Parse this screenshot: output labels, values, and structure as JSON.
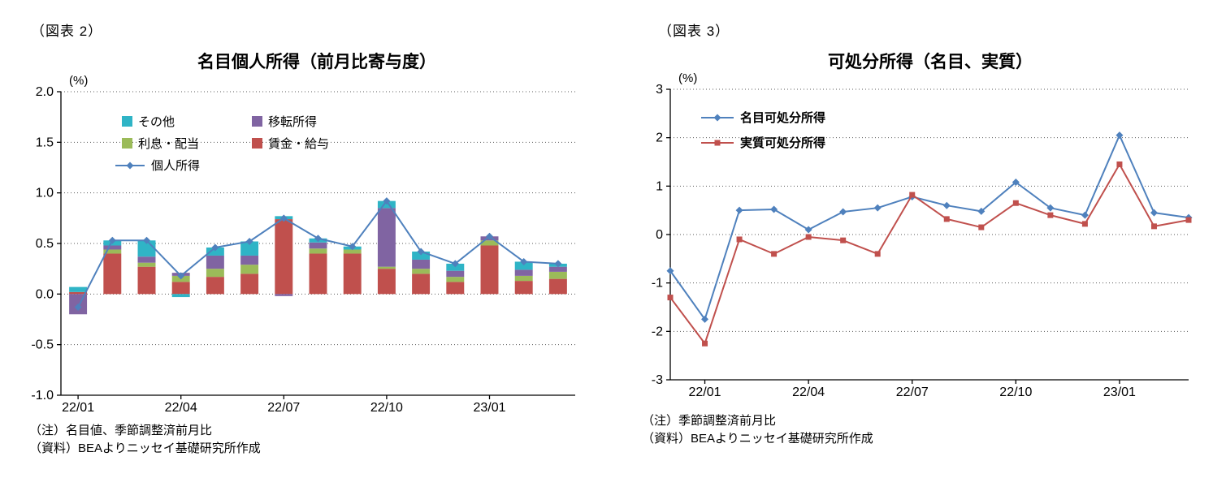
{
  "figure2": {
    "tag": "（図表 2）",
    "title": "名目個人所得（前月比寄与度）",
    "notes": [
      "（注）名目値、季節調整済前月比",
      "（資料）BEAよりニッセイ基礎研究所作成"
    ]
  },
  "figure3": {
    "tag": "（図表 3）",
    "title": "可処分所得（名目、実質）",
    "notes": [
      "（注）季節調整済前月比",
      "（資料）BEAよりニッセイ基礎研究所作成"
    ]
  },
  "colors": {
    "line_blue": "#4f81bd",
    "bar_red": "#c0504d",
    "bar_green": "#9bbb59",
    "bar_purple": "#8064a2",
    "bar_teal": "#2fb4c6",
    "grid": "#595959",
    "axis": "#000000"
  },
  "chart_data": [
    {
      "type": "bar",
      "subtype": "stacked-bar-with-line",
      "title": "名目個人所得（前月比寄与度）",
      "y_unit": "(%)",
      "ylabel": "",
      "xlabel": "",
      "ylim": [
        -1.0,
        2.0
      ],
      "yticks": [
        "2.0",
        "1.5",
        "1.0",
        "0.5",
        "0.0",
        "-0.5",
        "-1.0"
      ],
      "grid": "dotted-horizontal",
      "legend_position": "inside-top-left",
      "x": [
        "22/01",
        "22/02",
        "22/03",
        "22/04",
        "22/05",
        "22/06",
        "22/07",
        "22/08",
        "22/09",
        "22/10",
        "22/11",
        "22/12",
        "23/01",
        "23/02",
        "23/03"
      ],
      "xtick_labels": [
        "22/01",
        "22/04",
        "22/07",
        "22/10",
        "23/01"
      ],
      "bar_series": [
        {
          "name": "賃金・給与",
          "color": "#c0504d",
          "values": [
            0.02,
            0.4,
            0.27,
            0.12,
            0.17,
            0.2,
            0.74,
            0.4,
            0.4,
            0.25,
            0.2,
            0.12,
            0.48,
            0.13,
            0.15
          ]
        },
        {
          "name": "利息・配当",
          "color": "#9bbb59",
          "values": [
            0.0,
            0.04,
            0.04,
            0.06,
            0.08,
            0.09,
            0.0,
            0.05,
            0.04,
            0.02,
            0.05,
            0.05,
            0.05,
            0.05,
            0.07
          ]
        },
        {
          "name": "移転所得",
          "color": "#8064a2",
          "values": [
            -0.2,
            0.04,
            0.06,
            0.03,
            0.13,
            0.09,
            -0.02,
            0.06,
            0.0,
            0.58,
            0.09,
            0.06,
            0.04,
            0.06,
            0.05
          ]
        },
        {
          "name": "その他",
          "color": "#2fb4c6",
          "values": [
            0.05,
            0.05,
            0.16,
            -0.03,
            0.08,
            0.14,
            0.03,
            0.04,
            0.03,
            0.07,
            0.08,
            0.07,
            0.0,
            0.08,
            0.03
          ]
        }
      ],
      "line_series": [
        {
          "name": "個人所得",
          "color": "#4f81bd",
          "marker": "diamond",
          "values": [
            -0.13,
            0.53,
            0.53,
            0.18,
            0.46,
            0.52,
            0.75,
            0.55,
            0.47,
            0.92,
            0.42,
            0.3,
            0.57,
            0.32,
            0.3
          ]
        }
      ],
      "legend": [
        {
          "label": "その他",
          "type": "patch",
          "color": "#2fb4c6"
        },
        {
          "label": "移転所得",
          "type": "patch",
          "color": "#8064a2"
        },
        {
          "label": "利息・配当",
          "type": "patch",
          "color": "#9bbb59"
        },
        {
          "label": "賃金・給与",
          "type": "patch",
          "color": "#c0504d"
        },
        {
          "label": "個人所得",
          "type": "line",
          "color": "#4f81bd",
          "marker": "diamond"
        }
      ]
    },
    {
      "type": "line",
      "title": "可処分所得（名目、実質）",
      "y_unit": "(%)",
      "ylabel": "",
      "xlabel": "",
      "ylim": [
        -3,
        3
      ],
      "yticks": [
        "3",
        "2",
        "1",
        "0",
        "-1",
        "-2",
        "-3"
      ],
      "grid": "dotted-horizontal",
      "legend_position": "inside-top-left",
      "x": [
        "21/12",
        "22/01",
        "22/02",
        "22/03",
        "22/04",
        "22/05",
        "22/06",
        "22/07",
        "22/08",
        "22/09",
        "22/10",
        "22/11",
        "22/12",
        "23/01",
        "23/02",
        "23/03"
      ],
      "xtick_labels": [
        "22/01",
        "22/04",
        "22/07",
        "22/10",
        "23/01"
      ],
      "series": [
        {
          "name": "名目可処分所得",
          "color": "#4f81bd",
          "marker": "diamond",
          "values": [
            -0.75,
            -1.75,
            0.5,
            0.52,
            0.1,
            0.47,
            0.55,
            0.78,
            0.6,
            0.48,
            1.08,
            0.55,
            0.4,
            2.05,
            0.45,
            0.35
          ]
        },
        {
          "name": "実質可処分所得",
          "color": "#c0504d",
          "marker": "square",
          "values": [
            -1.3,
            -2.25,
            -0.1,
            -0.4,
            -0.05,
            -0.12,
            -0.4,
            0.82,
            0.32,
            0.15,
            0.65,
            0.4,
            0.22,
            1.45,
            0.17,
            0.3
          ]
        }
      ],
      "legend": [
        {
          "label": "名目可処分所得",
          "type": "line",
          "color": "#4f81bd",
          "marker": "diamond"
        },
        {
          "label": "実質可処分所得",
          "type": "line",
          "color": "#c0504d",
          "marker": "square"
        }
      ]
    }
  ]
}
